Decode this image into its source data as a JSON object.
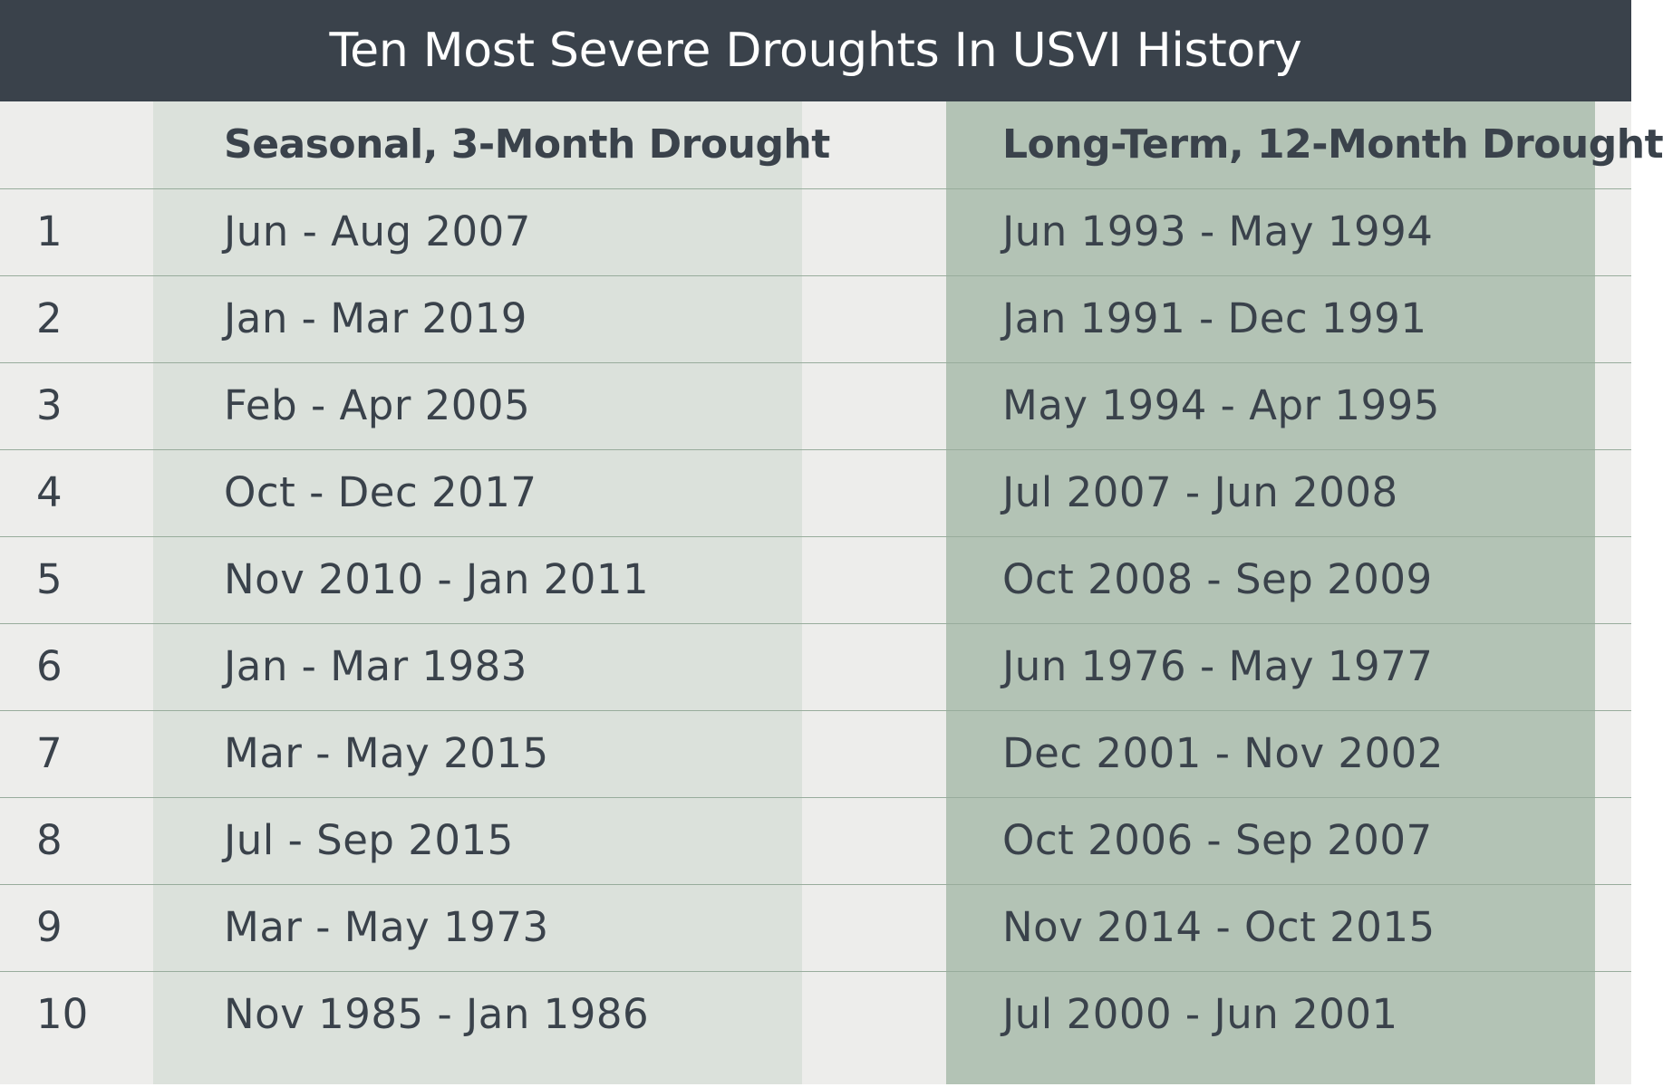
{
  "chart_data": {
    "type": "table",
    "title": "Ten Most Severe Droughts In USVI History",
    "columns": [
      "",
      "Seasonal, 3-Month Drought",
      "Long-Term, 12-Month Drought"
    ],
    "rows": [
      {
        "rank": "1",
        "seasonal": "Jun - Aug 2007",
        "long_term": "Jun 1993 - May 1994"
      },
      {
        "rank": "2",
        "seasonal": "Jan - Mar 2019",
        "long_term": "Jan 1991 - Dec 1991"
      },
      {
        "rank": "3",
        "seasonal": "Feb - Apr 2005",
        "long_term": "May 1994 - Apr 1995"
      },
      {
        "rank": "4",
        "seasonal": "Oct - Dec 2017",
        "long_term": "Jul 2007 - Jun 2008"
      },
      {
        "rank": "5",
        "seasonal": "Nov 2010 - Jan 2011",
        "long_term": "Oct 2008 - Sep 2009"
      },
      {
        "rank": "6",
        "seasonal": "Jan - Mar 1983",
        "long_term": "Jun 1976 - May 1977"
      },
      {
        "rank": "7",
        "seasonal": "Mar - May 2015",
        "long_term": "Dec 2001 - Nov 2002"
      },
      {
        "rank": "8",
        "seasonal": "Jul - Sep 2015",
        "long_term": "Oct 2006 - Sep 2007"
      },
      {
        "rank": "9",
        "seasonal": "Mar - May 1973",
        "long_term": "Nov 2014 - Oct 2015"
      },
      {
        "rank": "10",
        "seasonal": "Nov 1985 - Jan 1986",
        "long_term": "Jul 2000 - Jun 2001"
      }
    ]
  },
  "colors": {
    "title_bar": "#3a424b",
    "title_text": "#ffffff",
    "background": "#ededeb",
    "seasonal_band": "#dbe1db",
    "long_term_band": "#b3c3b5",
    "row_rule": "#98ac9c",
    "text": "#3a424b"
  }
}
